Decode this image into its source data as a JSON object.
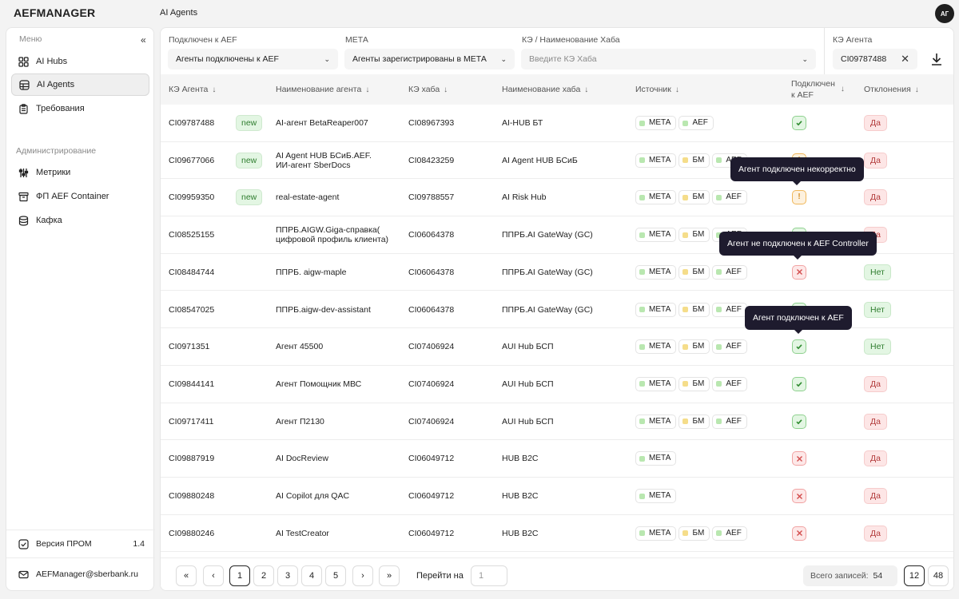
{
  "app": {
    "logo": "AEFMANAGER",
    "page_title": "AI Agents",
    "avatar_initials": "АГ"
  },
  "sidebar": {
    "menu_label": "Меню",
    "items": [
      {
        "label": "AI Hubs",
        "icon": "grid-icon"
      },
      {
        "label": "AI Agents",
        "icon": "globe-icon",
        "active": true
      },
      {
        "label": "Требования",
        "icon": "clipboard-icon"
      }
    ],
    "admin_label": "Администрирование",
    "admin_items": [
      {
        "label": "Метрики",
        "icon": "sliders-icon"
      },
      {
        "label": "ФП AEF Container",
        "icon": "container-icon"
      },
      {
        "label": "Кафка",
        "icon": "database-icon"
      }
    ],
    "version_label": "Версия ПРОМ",
    "version_value": "1.4",
    "email": "AEFManager@sberbank.ru"
  },
  "filters": {
    "aef": {
      "label": "Подключен к AEF",
      "value": "Агенты подключены к AEF"
    },
    "meta": {
      "label": "МЕТА",
      "value": "Агенты зарегистрированы в МЕТА"
    },
    "hub": {
      "label": "КЭ / Наименование Хаба",
      "placeholder": "Введите КЭ Хаба"
    },
    "agent_ke": {
      "label": "КЭ Агента",
      "value": "CI09787488"
    }
  },
  "table": {
    "headers": {
      "ke_agent": "КЭ Агента",
      "name": "Наименование агента",
      "ke_hub": "КЭ хаба",
      "hub_name": "Наименование хаба",
      "source": "Источник",
      "aef_line1": "Подключен",
      "aef_line2": "к AEF",
      "dev": "Отклонения"
    },
    "rows": [
      {
        "ke": "CI09787488",
        "new": "new",
        "name1": "AI-агент BetaReaper007",
        "name2": "",
        "ke_hub": "CI08967393",
        "hub": "AI-HUB БТ",
        "sources": [
          "МЕТА",
          "AEF"
        ],
        "status": "ok",
        "dev": "Да"
      },
      {
        "ke": "CI09677066",
        "new": "new",
        "name1": "AI Agent HUB БСиБ.AEF.",
        "name2": "ИИ-агент SberDocs",
        "ke_hub": "CI08423259",
        "hub": "AI Agent HUB БСиБ",
        "sources": [
          "МЕТА",
          "БМ",
          "AEF"
        ],
        "status": "warn",
        "dev": "Да"
      },
      {
        "ke": "CI09959350",
        "new": "new",
        "name1": "real-estate-agent",
        "name2": "",
        "ke_hub": "CI09788557",
        "hub": "AI Risk Hub",
        "sources": [
          "МЕТА",
          "БМ",
          "AEF"
        ],
        "status": "warn",
        "dev": "Да"
      },
      {
        "ke": "CI08525155",
        "new": "",
        "name1": "ППРБ.AIGW.Giga-справка(",
        "name2": "цифровой профиль клиента)",
        "ke_hub": "CI06064378",
        "hub": "ППРБ.AI GateWay (GC)",
        "sources": [
          "МЕТА",
          "БМ",
          "AEF"
        ],
        "status": "ok",
        "dev": "Да"
      },
      {
        "ke": "CI08484744",
        "new": "",
        "name1": "ППРБ. aigw-maple",
        "name2": "",
        "ke_hub": "CI06064378",
        "hub": "ППРБ.AI GateWay (GC)",
        "sources": [
          "МЕТА",
          "БМ",
          "AEF"
        ],
        "status": "err",
        "dev": "Нет"
      },
      {
        "ke": "CI08547025",
        "new": "",
        "name1": "ППРБ.aigw-dev-assistant",
        "name2": "",
        "ke_hub": "CI06064378",
        "hub": "ППРБ.AI GateWay (GC)",
        "sources": [
          "МЕТА",
          "БМ",
          "AEF"
        ],
        "status": "ok",
        "dev": "Нет"
      },
      {
        "ke": "CI0971351",
        "new": "",
        "name1": "Агент 45500",
        "name2": "",
        "ke_hub": "CI07406924",
        "hub": "AUI Hub БСП",
        "sources": [
          "МЕТА",
          "БМ",
          "AEF"
        ],
        "status": "ok",
        "dev": "Нет"
      },
      {
        "ke": "CI09844141",
        "new": "",
        "name1": "Агент Помощник МВС",
        "name2": "",
        "ke_hub": "CI07406924",
        "hub": "AUI Hub БСП",
        "sources": [
          "МЕТА",
          "БМ",
          "AEF"
        ],
        "status": "ok",
        "dev": "Да"
      },
      {
        "ke": "CI09717411",
        "new": "",
        "name1": "Агент П2130",
        "name2": "",
        "ke_hub": "CI07406924",
        "hub": "AUI Hub БСП",
        "sources": [
          "МЕТА",
          "БМ",
          "AEF"
        ],
        "status": "ok",
        "dev": "Да"
      },
      {
        "ke": "CI09887919",
        "new": "",
        "name1": "AI DocReview",
        "name2": "",
        "ke_hub": "CI06049712",
        "hub": "HUB B2C",
        "sources": [
          "МЕТА"
        ],
        "status": "err",
        "dev": "Да"
      },
      {
        "ke": "CI09880248",
        "new": "",
        "name1": "AI Copilot для QAC",
        "name2": "",
        "ke_hub": "CI06049712",
        "hub": "HUB B2C",
        "sources": [
          "МЕТА"
        ],
        "status": "err",
        "dev": "Да"
      },
      {
        "ke": "CI09880246",
        "new": "",
        "name1": "AI TestCreator",
        "name2": "",
        "ke_hub": "CI06049712",
        "hub": "HUB B2C",
        "sources": [
          "МЕТА",
          "БМ",
          "AEF"
        ],
        "status": "err",
        "dev": "Да"
      }
    ]
  },
  "tooltips": {
    "incorrect": "Агент подключен некорректно",
    "not_connected": "Агент не подключен к AEF Controller",
    "connected": "Агент подключен к AEF"
  },
  "pagination": {
    "pages": [
      "1",
      "2",
      "3",
      "4",
      "5"
    ],
    "current": "1",
    "goto_label": "Перейти на",
    "goto_placeholder": "1",
    "total_label": "Всего записей:",
    "total_value": "54",
    "page_sizes": [
      "12",
      "48"
    ]
  }
}
